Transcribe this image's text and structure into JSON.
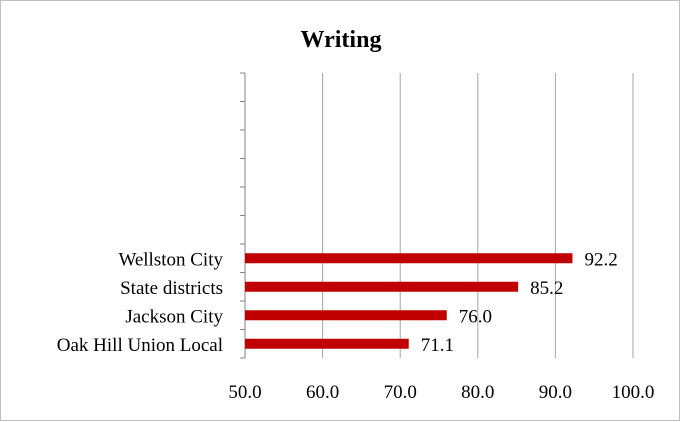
{
  "chart_data": {
    "type": "bar",
    "orientation": "horizontal",
    "title": "Writing",
    "categories": [
      "Wellston City",
      "State districts",
      "Jackson City",
      "Oak Hill Union Local"
    ],
    "values": [
      92.2,
      85.2,
      76.0,
      71.1
    ],
    "value_labels": [
      "92.2",
      "85.2",
      "76.0",
      "71.1"
    ],
    "xlim": [
      50.0,
      100.0
    ],
    "x_ticks": [
      50.0,
      60.0,
      70.0,
      80.0,
      90.0,
      100.0
    ],
    "x_tick_labels": [
      "50.0",
      "60.0",
      "70.0",
      "80.0",
      "90.0",
      "100.0"
    ],
    "category_slots": 10,
    "grid": "vertical",
    "legend": "none",
    "xlabel": "",
    "ylabel": "",
    "bar_color": "#c00000",
    "grid_color": "#a6a6a6"
  }
}
